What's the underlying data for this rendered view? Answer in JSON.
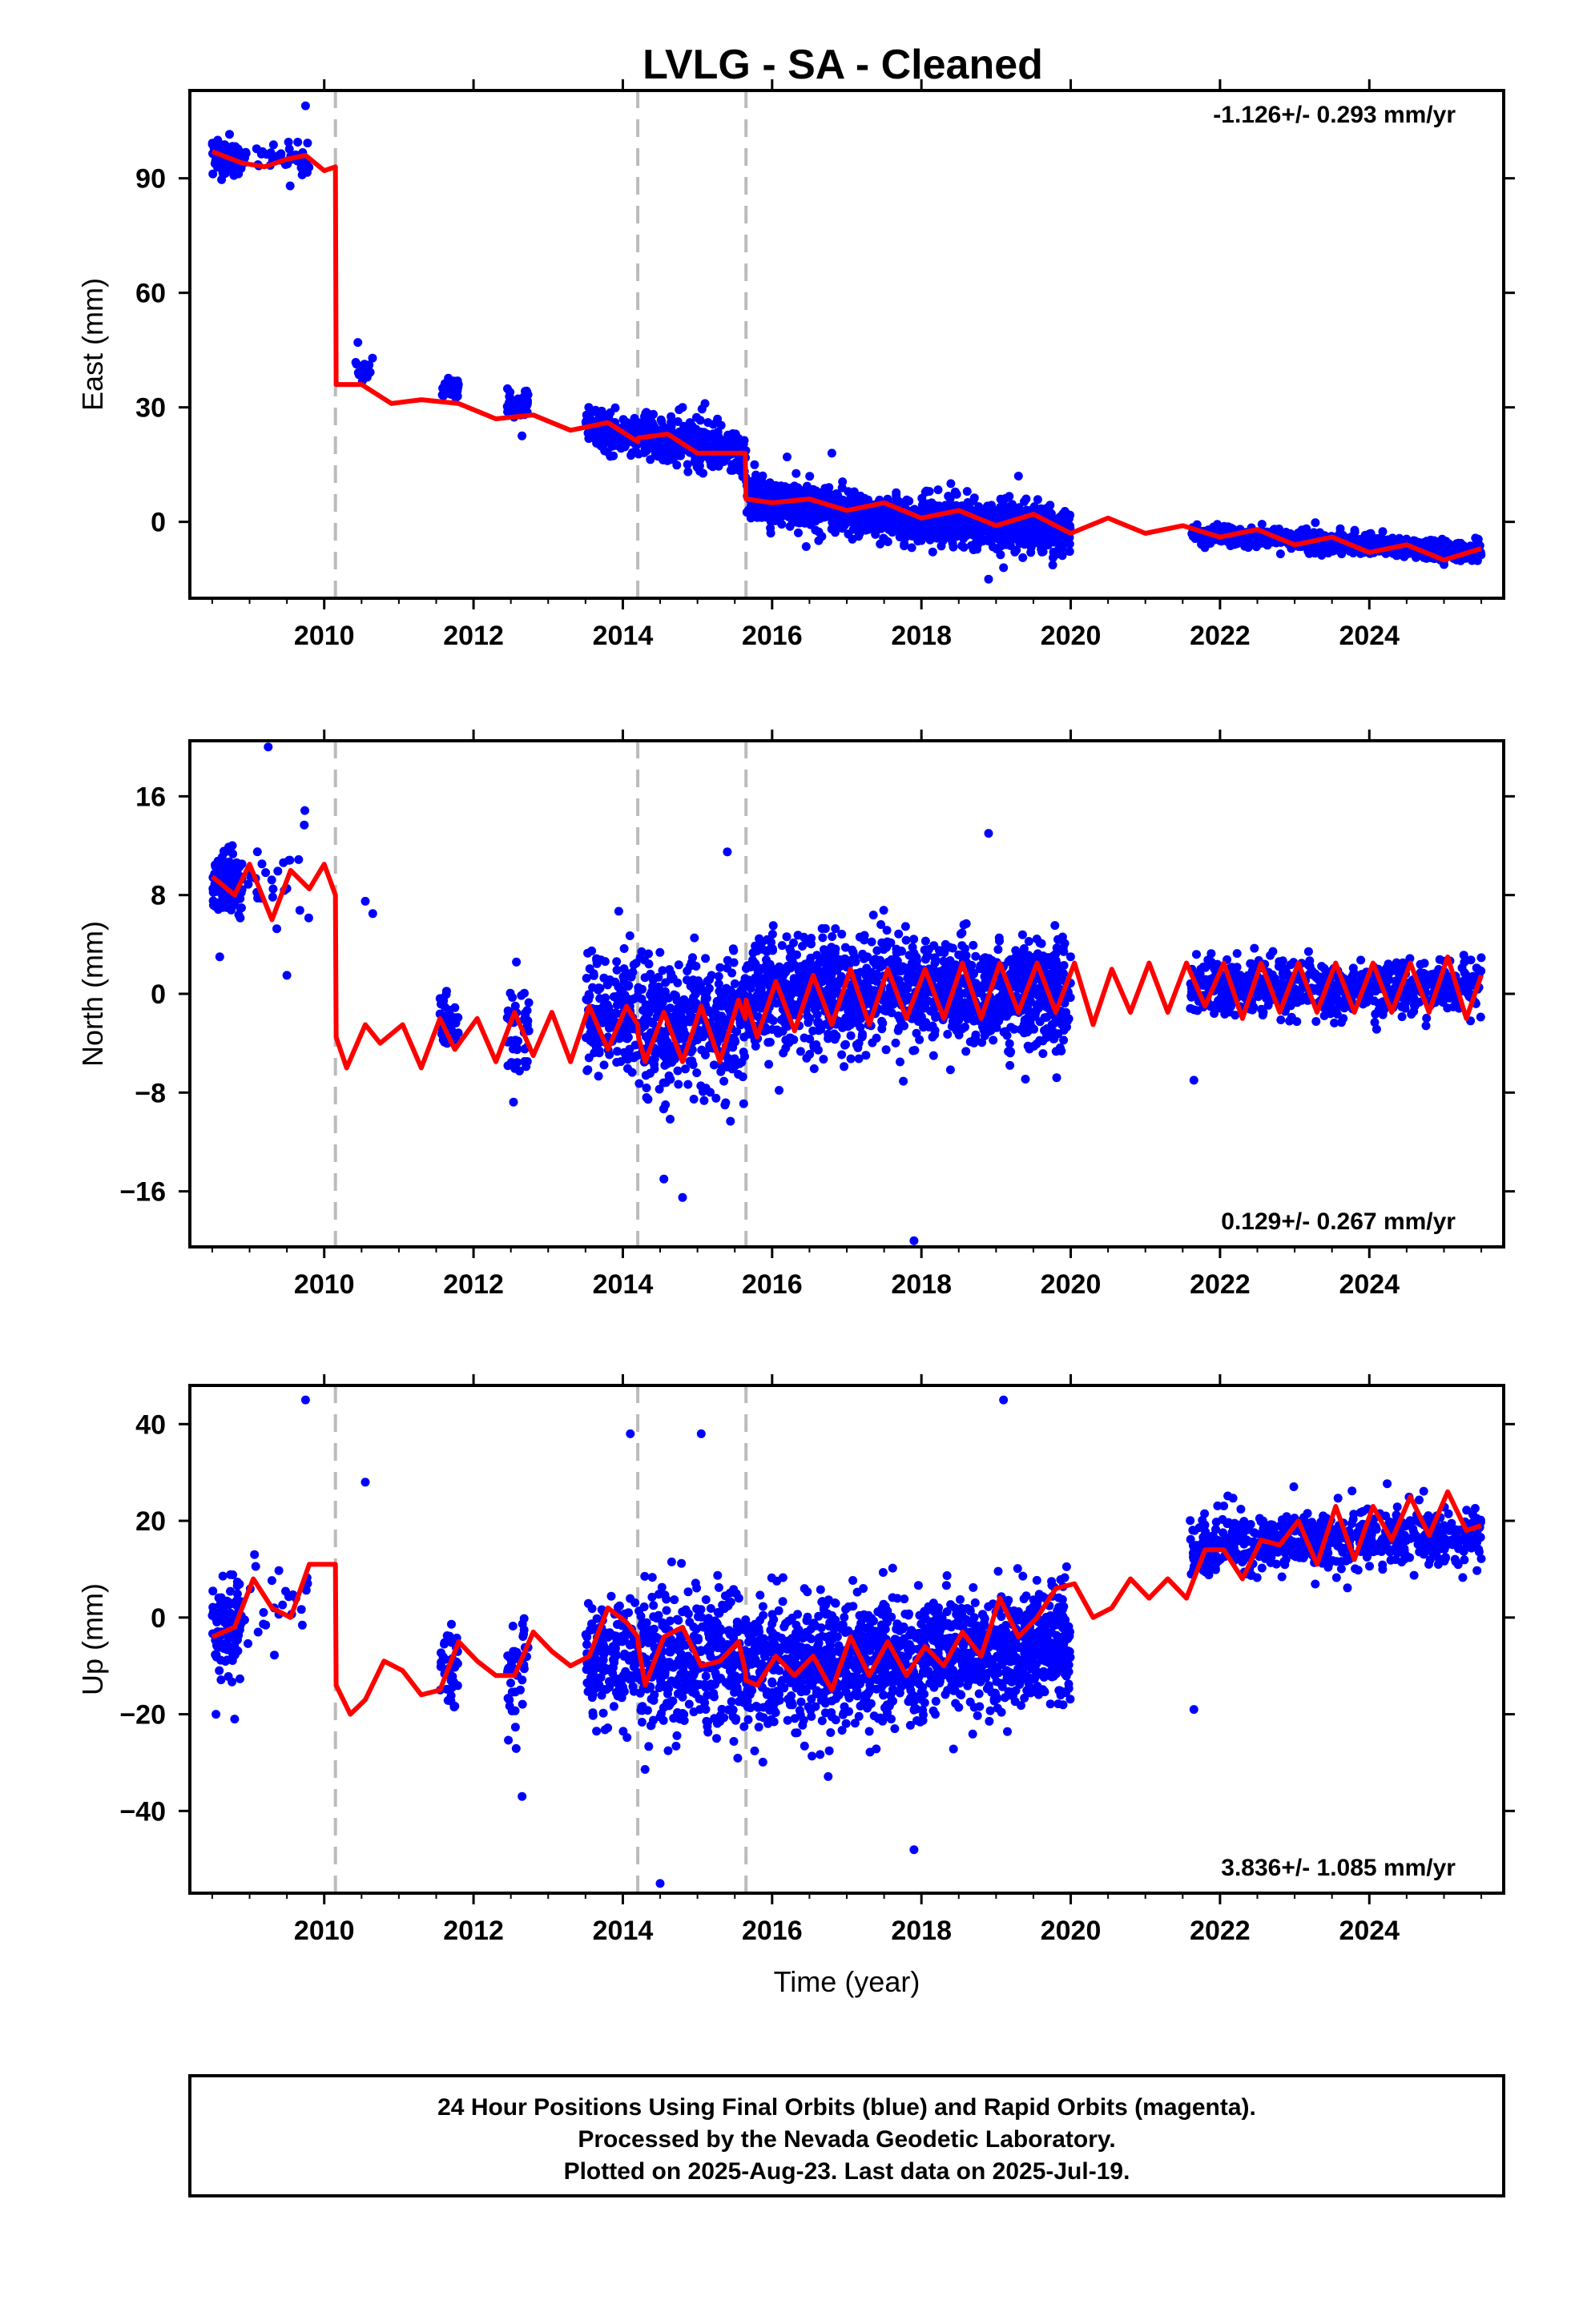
{
  "title": "LVLG  - SA - Cleaned",
  "xlabel": "Time (year)",
  "footer": {
    "line1": "24 Hour Positions Using Final Orbits (blue) and Rapid Orbits (magenta).",
    "line2": "Processed by the Nevada Geodetic Laboratory.",
    "line3": "Plotted on 2025-Aug-23. Last data on 2025-Jul-19."
  },
  "colors": {
    "data": "#0000ff",
    "model": "#ff0000",
    "breaks": "#bbbbbb",
    "frame": "#000000"
  },
  "chart_data": [
    {
      "type": "scatter",
      "component": "east",
      "ylabel": "East (mm)",
      "rate_text": "-1.126+/- 0.293 mm/yr",
      "xlim": [
        2008.2,
        2025.8
      ],
      "ylim": [
        -20,
        113
      ],
      "xticks": [
        2010,
        2012,
        2014,
        2016,
        2018,
        2020,
        2022,
        2024
      ],
      "yticks": [
        0,
        30,
        60,
        90
      ],
      "breaks": [
        2010.15,
        2014.2,
        2015.65
      ],
      "series": [
        {
          "role": "model",
          "x": [
            2008.5,
            2008.9,
            2009.2,
            2009.5,
            2009.75,
            2010.0,
            2010.15,
            2010.16,
            2010.5,
            2010.9,
            2011.3,
            2011.8,
            2012.3,
            2012.8,
            2013.3,
            2013.8,
            2014.2,
            2014.21,
            2014.6,
            2015.0,
            2015.3,
            2015.64,
            2015.65,
            2016.0,
            2016.5,
            2017.0,
            2017.5,
            2018.0,
            2018.5,
            2019.0,
            2019.5,
            2020.0,
            2020.5,
            2021.0,
            2021.5,
            2022.0,
            2022.5,
            2023.0,
            2023.5,
            2024.0,
            2024.5,
            2025.0,
            2025.5
          ],
          "y": [
            97,
            94,
            93,
            95,
            96,
            92,
            93,
            36,
            36,
            31,
            32,
            31,
            27,
            28,
            24,
            26,
            21,
            22,
            23,
            18,
            18,
            18,
            6,
            5,
            6,
            3,
            5,
            1,
            3,
            -1,
            2,
            -3,
            1,
            -3,
            -1,
            -4,
            -2,
            -6,
            -4,
            -8,
            -6,
            -10,
            -7
          ]
        },
        {
          "role": "observations",
          "groups": [
            {
              "x": [
                2008.5,
                2008.9
              ],
              "center": [
                97,
                94
              ],
              "spread": 3.5,
              "n": 110
            },
            {
              "x": [
                2008.9,
                2009.8
              ],
              "center": [
                96,
                95
              ],
              "spread": 3,
              "n": 45
            },
            {
              "x": [
                2010.4,
                2010.65
              ],
              "center": [
                40,
                40
              ],
              "spread": 3,
              "n": 12
            },
            {
              "x": [
                2011.55,
                2011.8
              ],
              "center": [
                35,
                35
              ],
              "spread": 2.2,
              "n": 45
            },
            {
              "x": [
                2012.45,
                2012.75
              ],
              "center": [
                32,
                31
              ],
              "spread": 3.5,
              "n": 50
            },
            {
              "x": [
                2013.5,
                2014.2
              ],
              "center": [
                26,
                21
              ],
              "spread": 4,
              "n": 160
            },
            {
              "x": [
                2014.2,
                2015.65
              ],
              "center": [
                23,
                18
              ],
              "spread": 5,
              "n": 380
            },
            {
              "x": [
                2015.65,
                2018.0
              ],
              "center": [
                6,
                0
              ],
              "spread": 4.5,
              "n": 700
            },
            {
              "x": [
                2018.0,
                2020.0
              ],
              "center": [
                1,
                -2
              ],
              "spread": 5,
              "n": 650
            },
            {
              "x": [
                2021.6,
                2025.5
              ],
              "center": [
                -3,
                -8
              ],
              "spread": 2.2,
              "n": 700
            }
          ],
          "outliers": [
            [
              2009.75,
              109
            ],
            [
              2010.45,
              47
            ],
            [
              2014.8,
              30
            ],
            [
              2015.1,
              31
            ],
            [
              2016.2,
              17
            ],
            [
              2018.9,
              -15
            ],
            [
              2019.1,
              -12
            ],
            [
              2019.3,
              12
            ],
            [
              2016.8,
              18
            ]
          ]
        }
      ]
    },
    {
      "type": "scatter",
      "component": "north",
      "ylabel": "North (mm)",
      "rate_text": "0.129+/- 0.267 mm/yr",
      "xlim": [
        2008.2,
        2025.8
      ],
      "ylim": [
        -20.5,
        20.5
      ],
      "xticks": [
        2010,
        2012,
        2014,
        2016,
        2018,
        2020,
        2022,
        2024
      ],
      "yticks": [
        -16,
        -8,
        0,
        8,
        16
      ],
      "breaks": [
        2010.15,
        2014.2,
        2015.65
      ],
      "series": [
        {
          "role": "model",
          "x": [
            2008.5,
            2008.8,
            2009.0,
            2009.3,
            2009.55,
            2009.8,
            2010.0,
            2010.15,
            2010.16,
            2010.3,
            2010.55,
            2010.75,
            2011.05,
            2011.3,
            2011.55,
            2011.75,
            2012.05,
            2012.3,
            2012.55,
            2012.8,
            2013.05,
            2013.3,
            2013.55,
            2013.8,
            2014.05,
            2014.2,
            2014.21,
            2014.3,
            2014.55,
            2014.8,
            2015.05,
            2015.3,
            2015.55,
            2015.64,
            2015.65,
            2015.8,
            2016.05,
            2016.3,
            2016.55,
            2016.8,
            2017.05,
            2017.3,
            2017.55,
            2017.8,
            2018.05,
            2018.3,
            2018.55,
            2018.8,
            2019.05,
            2019.3,
            2019.55,
            2019.8,
            2020.05,
            2020.3,
            2020.55,
            2020.8,
            2021.05,
            2021.3,
            2021.55,
            2021.8,
            2022.05,
            2022.3,
            2022.55,
            2022.8,
            2023.05,
            2023.3,
            2023.55,
            2023.8,
            2024.05,
            2024.3,
            2024.55,
            2024.8,
            2025.05,
            2025.3,
            2025.5
          ],
          "y": [
            9.5,
            8,
            10.5,
            6,
            10,
            8.5,
            10.5,
            8,
            -3.5,
            -6,
            -2.5,
            -4,
            -2.5,
            -6,
            -2,
            -4.5,
            -2,
            -5.5,
            -1.5,
            -5,
            -1.5,
            -5.5,
            -1,
            -4.5,
            -1,
            -2.5,
            -3.5,
            -5.5,
            -1.5,
            -5.5,
            -1,
            -5.5,
            -0.5,
            -2,
            -0.5,
            -3.5,
            1,
            -3,
            1.5,
            -2.5,
            2,
            -2.5,
            2,
            -2,
            2,
            -2,
            2.5,
            -2,
            2.5,
            -1.5,
            2.5,
            -1.5,
            2.5,
            -2.5,
            2,
            -1.5,
            2.5,
            -1.5,
            2.5,
            -1,
            2.5,
            -2,
            2.5,
            -1.5,
            2.5,
            -1.5,
            2.5,
            -1.5,
            2.5,
            -1.5,
            2.5,
            -1.5,
            3,
            -2,
            1.5
          ]
        },
        {
          "role": "observations",
          "groups": [
            {
              "x": [
                2008.5,
                2008.9
              ],
              "center": [
                9,
                9
              ],
              "spread": 2.2,
              "n": 120
            },
            {
              "x": [
                2008.9,
                2009.8
              ],
              "center": [
                9,
                9
              ],
              "spread": 3,
              "n": 25
            },
            {
              "x": [
                2011.55,
                2011.8
              ],
              "center": [
                -2,
                -2
              ],
              "spread": 2.2,
              "n": 40
            },
            {
              "x": [
                2012.45,
                2012.75
              ],
              "center": [
                -3,
                -3
              ],
              "spread": 3,
              "n": 45
            },
            {
              "x": [
                2013.5,
                2014.2
              ],
              "center": [
                -2,
                -2
              ],
              "spread": 4,
              "n": 180
            },
            {
              "x": [
                2014.2,
                2015.65
              ],
              "center": [
                -3,
                -2
              ],
              "spread": 4.5,
              "n": 400
            },
            {
              "x": [
                2015.65,
                2018.0
              ],
              "center": [
                0,
                0
              ],
              "spread": 3.8,
              "n": 700
            },
            {
              "x": [
                2018.0,
                2020.0
              ],
              "center": [
                0,
                0
              ],
              "spread": 3.5,
              "n": 650
            },
            {
              "x": [
                2021.6,
                2025.5
              ],
              "center": [
                0.5,
                0.5
              ],
              "spread": 1.8,
              "n": 700
            }
          ],
          "outliers": [
            [
              2009.25,
              20
            ],
            [
              2008.6,
              3
            ],
            [
              2010.55,
              7.5
            ],
            [
              2010.65,
              6.5
            ],
            [
              2014.55,
              -15
            ],
            [
              2014.8,
              -16.5
            ],
            [
              2015.4,
              11.5
            ],
            [
              2017.9,
              -20
            ],
            [
              2018.9,
              13
            ],
            [
              2021.65,
              -7
            ],
            [
              2009.5,
              1.5
            ]
          ]
        }
      ]
    },
    {
      "type": "scatter",
      "component": "up",
      "ylabel": "Up (mm)",
      "rate_text": "3.836+/- 1.085 mm/yr",
      "xlim": [
        2008.2,
        2025.8
      ],
      "ylim": [
        -57,
        48
      ],
      "xticks": [
        2010,
        2012,
        2014,
        2016,
        2018,
        2020,
        2022,
        2024
      ],
      "yticks": [
        -40,
        -20,
        0,
        20,
        40
      ],
      "breaks": [
        2010.15,
        2014.2,
        2015.65
      ],
      "series": [
        {
          "role": "model",
          "x": [
            2008.5,
            2008.8,
            2009.05,
            2009.3,
            2009.55,
            2009.8,
            2010.0,
            2010.15,
            2010.16,
            2010.35,
            2010.55,
            2010.8,
            2011.05,
            2011.3,
            2011.55,
            2011.8,
            2012.05,
            2012.3,
            2012.55,
            2012.8,
            2013.05,
            2013.3,
            2013.55,
            2013.8,
            2014.05,
            2014.2,
            2014.21,
            2014.3,
            2014.55,
            2014.8,
            2015.05,
            2015.3,
            2015.55,
            2015.64,
            2015.65,
            2015.8,
            2016.05,
            2016.3,
            2016.55,
            2016.8,
            2017.05,
            2017.3,
            2017.55,
            2017.8,
            2018.05,
            2018.3,
            2018.55,
            2018.8,
            2019.05,
            2019.3,
            2019.55,
            2019.8,
            2020.05,
            2020.3,
            2020.55,
            2020.8,
            2021.05,
            2021.3,
            2021.55,
            2021.8,
            2022.05,
            2022.3,
            2022.55,
            2022.8,
            2023.05,
            2023.3,
            2023.55,
            2023.8,
            2024.05,
            2024.3,
            2024.55,
            2024.8,
            2025.05,
            2025.3,
            2025.5
          ],
          "y": [
            -4,
            -2,
            8,
            2,
            0,
            11,
            11,
            11,
            -14,
            -20,
            -17,
            -9,
            -11,
            -16,
            -15,
            -5,
            -9,
            -12,
            -12,
            -3,
            -7,
            -10,
            -8,
            2,
            -1,
            -4,
            -6,
            -14,
            -4,
            -2,
            -10,
            -9,
            -5,
            -11,
            -13,
            -14,
            -8,
            -12,
            -8,
            -15,
            -4,
            -12,
            -5,
            -12,
            -6,
            -10,
            -3,
            -8,
            4,
            -4,
            0,
            6,
            7,
            0,
            2,
            8,
            4,
            8,
            4,
            14,
            14,
            8,
            16,
            15,
            20,
            11,
            23,
            12,
            23,
            16,
            25,
            17,
            26,
            18,
            19
          ]
        },
        {
          "role": "observations",
          "groups": [
            {
              "x": [
                2008.5,
                2008.9
              ],
              "center": [
                -3,
                0
              ],
              "spread": 7,
              "n": 110
            },
            {
              "x": [
                2008.9,
                2009.8
              ],
              "center": [
                3,
                3
              ],
              "spread": 8,
              "n": 25
            },
            {
              "x": [
                2011.55,
                2011.8
              ],
              "center": [
                -10,
                -10
              ],
              "spread": 7,
              "n": 40
            },
            {
              "x": [
                2012.45,
                2012.75
              ],
              "center": [
                -12,
                -10
              ],
              "spread": 9,
              "n": 45
            },
            {
              "x": [
                2013.5,
                2014.2
              ],
              "center": [
                -9,
                -8
              ],
              "spread": 9,
              "n": 180
            },
            {
              "x": [
                2014.2,
                2015.65
              ],
              "center": [
                -9,
                -8
              ],
              "spread": 12,
              "n": 400
            },
            {
              "x": [
                2015.65,
                2018.0
              ],
              "center": [
                -10,
                -9
              ],
              "spread": 11,
              "n": 700
            },
            {
              "x": [
                2018.0,
                2020.0
              ],
              "center": [
                -8,
                -6
              ],
              "spread": 10,
              "n": 650
            },
            {
              "x": [
                2021.6,
                2025.5
              ],
              "center": [
                15,
                17
              ],
              "spread": 5,
              "n": 700
            }
          ],
          "outliers": [
            [
              2009.75,
              45
            ],
            [
              2010.55,
              28
            ],
            [
              2014.1,
              38
            ],
            [
              2014.5,
              -55
            ],
            [
              2015.05,
              38
            ],
            [
              2019.1,
              45
            ],
            [
              2021.65,
              -19
            ],
            [
              2008.55,
              -20
            ],
            [
              2008.8,
              -21
            ],
            [
              2012.65,
              -37
            ],
            [
              2017.9,
              -48
            ]
          ]
        }
      ]
    }
  ]
}
